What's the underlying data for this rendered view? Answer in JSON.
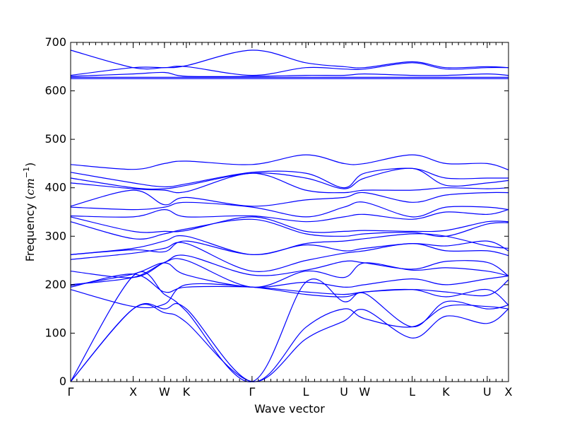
{
  "chart_data": {
    "type": "line",
    "title": "",
    "xlabel": "Wave vector",
    "ylabel": "Frequency (",
    "ylabel_unit": "cm",
    "ylabel_exponent": "−1",
    "ylabel_close": ")",
    "ylim": [
      0,
      700
    ],
    "xlim": [
      0,
      7.0
    ],
    "yticks": [
      0,
      100,
      200,
      300,
      400,
      500,
      600,
      700
    ],
    "ytick_labels": [
      "0",
      "100",
      "200",
      "300",
      "400",
      "500",
      "600",
      "700"
    ],
    "high_symmetry_points": [
      {
        "label": "Γ",
        "x": 0.0
      },
      {
        "label": "X",
        "x": 1.0
      },
      {
        "label": "W",
        "x": 1.5
      },
      {
        "label": "K",
        "x": 1.85
      },
      {
        "label": "Γ",
        "x": 2.9
      },
      {
        "label": "L",
        "x": 3.76
      },
      {
        "label": "U",
        "x": 4.37
      },
      {
        "label": "W",
        "x": 4.7
      },
      {
        "label": "L",
        "x": 5.46
      },
      {
        "label": "K",
        "x": 6.0
      },
      {
        "label": "U",
        "x": 6.66
      },
      {
        "label": "X",
        "x": 7.0
      }
    ],
    "line_color": "#0000ff",
    "grid": false,
    "legend": "none",
    "series": [
      {
        "x": [
          0,
          1.0,
          1.5,
          1.85,
          2.9,
          3.76,
          4.37,
          4.7,
          5.46,
          6.0,
          6.66,
          7.0
        ],
        "values": [
          0,
          150,
          142,
          122,
          0,
          88,
          125,
          148,
          90,
          135,
          120,
          150
        ]
      },
      {
        "x": [
          0,
          1.0,
          1.5,
          1.85,
          2.9,
          3.76,
          4.37,
          4.7,
          5.46,
          6.0,
          6.66,
          7.0
        ],
        "values": [
          0,
          150,
          150,
          150,
          0,
          112,
          150,
          130,
          113,
          155,
          155,
          150
        ]
      },
      {
        "x": [
          0,
          1.0,
          1.5,
          1.85,
          2.9,
          3.76,
          4.37,
          4.7,
          5.46,
          6.0,
          6.66,
          7.0
        ],
        "values": [
          0,
          218,
          180,
          145,
          0,
          205,
          165,
          182,
          113,
          165,
          150,
          158
        ]
      },
      {
        "x": [
          0,
          1.0,
          1.5,
          1.85,
          2.9,
          3.76,
          4.37,
          4.7,
          5.46,
          6.0,
          6.66,
          7.0
        ],
        "values": [
          190,
          155,
          160,
          200,
          195,
          180,
          175,
          185,
          190,
          175,
          190,
          158
        ]
      },
      {
        "x": [
          0,
          1.0,
          1.5,
          1.85,
          2.9,
          3.76,
          4.37,
          4.7,
          5.46,
          6.0,
          6.66,
          7.0
        ],
        "values": [
          195,
          222,
          185,
          195,
          195,
          185,
          180,
          185,
          190,
          185,
          178,
          210
        ]
      },
      {
        "x": [
          0,
          1.0,
          1.5,
          1.85,
          2.9,
          3.76,
          4.37,
          4.7,
          5.46,
          6.0,
          6.66,
          7.0
        ],
        "values": [
          198,
          222,
          245,
          220,
          195,
          205,
          195,
          200,
          212,
          200,
          212,
          218
        ]
      },
      {
        "x": [
          0,
          1.0,
          1.5,
          1.85,
          2.9,
          3.76,
          4.37,
          4.7,
          5.46,
          6.0,
          6.66,
          7.0
        ],
        "values": [
          200,
          215,
          246,
          250,
          195,
          228,
          215,
          245,
          230,
          235,
          228,
          218
        ]
      },
      {
        "x": [
          0,
          1.0,
          1.5,
          1.85,
          2.9,
          3.76,
          4.37,
          4.7,
          5.46,
          6.0,
          6.66,
          7.0
        ],
        "values": [
          228,
          215,
          246,
          260,
          220,
          230,
          248,
          245,
          232,
          248,
          246,
          218
        ]
      },
      {
        "x": [
          0,
          1.0,
          1.5,
          1.85,
          2.9,
          3.76,
          4.37,
          4.7,
          5.46,
          6.0,
          6.66,
          7.0
        ],
        "values": [
          252,
          265,
          275,
          285,
          228,
          250,
          265,
          270,
          285,
          270,
          270,
          260
        ]
      },
      {
        "x": [
          0,
          1.0,
          1.5,
          1.85,
          2.9,
          3.76,
          4.37,
          4.7,
          5.46,
          6.0,
          6.66,
          7.0
        ],
        "values": [
          262,
          272,
          268,
          290,
          262,
          282,
          270,
          275,
          285,
          280,
          290,
          270
        ]
      },
      {
        "x": [
          0,
          1.0,
          1.5,
          1.85,
          2.9,
          3.76,
          4.37,
          4.7,
          5.46,
          6.0,
          6.66,
          7.0
        ],
        "values": [
          262,
          275,
          290,
          300,
          262,
          285,
          290,
          295,
          305,
          300,
          280,
          275
        ]
      },
      {
        "x": [
          0,
          1.0,
          1.5,
          1.85,
          2.9,
          3.76,
          4.37,
          4.7,
          5.46,
          6.0,
          6.66,
          7.0
        ],
        "values": [
          330,
          295,
          305,
          315,
          335,
          305,
          300,
          305,
          308,
          300,
          325,
          328
        ]
      },
      {
        "x": [
          0,
          1.0,
          1.5,
          1.85,
          2.9,
          3.76,
          4.37,
          4.7,
          5.46,
          6.0,
          6.66,
          7.0
        ],
        "values": [
          340,
          310,
          310,
          312,
          340,
          310,
          310,
          312,
          310,
          312,
          330,
          330
        ]
      },
      {
        "x": [
          0,
          1.0,
          1.5,
          1.85,
          2.9,
          3.76,
          4.37,
          4.7,
          5.46,
          6.0,
          6.66,
          7.0
        ],
        "values": [
          342,
          340,
          355,
          340,
          342,
          330,
          340,
          345,
          335,
          350,
          345,
          355
        ]
      },
      {
        "x": [
          0,
          1.0,
          1.5,
          1.85,
          2.9,
          3.76,
          4.37,
          4.7,
          5.46,
          6.0,
          6.66,
          7.0
        ],
        "values": [
          360,
          355,
          360,
          370,
          360,
          340,
          360,
          370,
          340,
          360,
          360,
          355
        ]
      },
      {
        "x": [
          0,
          1.0,
          1.5,
          1.85,
          2.9,
          3.76,
          4.37,
          4.7,
          5.46,
          6.0,
          6.66,
          7.0
        ],
        "values": [
          362,
          395,
          365,
          380,
          362,
          375,
          380,
          390,
          370,
          385,
          390,
          390
        ]
      },
      {
        "x": [
          0,
          1.0,
          1.5,
          1.85,
          2.9,
          3.76,
          4.37,
          4.7,
          5.46,
          6.0,
          6.66,
          7.0
        ],
        "values": [
          410,
          398,
          395,
          392,
          430,
          395,
          390,
          395,
          395,
          400,
          398,
          400
        ]
      },
      {
        "x": [
          0,
          1.0,
          1.5,
          1.85,
          2.9,
          3.76,
          4.37,
          4.7,
          5.46,
          6.0,
          6.66,
          7.0
        ],
        "values": [
          420,
          400,
          398,
          405,
          430,
          420,
          398,
          420,
          440,
          405,
          410,
          415
        ]
      },
      {
        "x": [
          0,
          1.0,
          1.5,
          1.85,
          2.9,
          3.76,
          4.37,
          4.7,
          5.46,
          6.0,
          6.66,
          7.0
        ],
        "values": [
          432,
          410,
          402,
          408,
          432,
          430,
          400,
          430,
          440,
          420,
          420,
          420
        ]
      },
      {
        "x": [
          0,
          1.0,
          1.5,
          1.85,
          2.9,
          3.76,
          4.37,
          4.7,
          5.46,
          6.0,
          6.66,
          7.0
        ],
        "values": [
          448,
          438,
          450,
          455,
          448,
          468,
          450,
          450,
          468,
          450,
          450,
          437
        ]
      },
      {
        "x": [
          0,
          1.0,
          1.5,
          1.85,
          2.9,
          3.76,
          4.37,
          4.7,
          5.46,
          6.0,
          6.66,
          7.0
        ],
        "values": [
          625,
          625,
          625,
          625,
          625,
          625,
          625,
          625,
          625,
          625,
          625,
          625
        ]
      },
      {
        "x": [
          0,
          1.0,
          1.5,
          1.85,
          2.9,
          3.76,
          4.37,
          4.7,
          5.46,
          6.0,
          6.66,
          7.0
        ],
        "values": [
          628,
          628,
          628,
          628,
          628,
          628,
          628,
          628,
          628,
          628,
          628,
          628
        ]
      },
      {
        "x": [
          0,
          1.0,
          1.5,
          1.85,
          2.9,
          3.76,
          4.37,
          4.7,
          5.46,
          6.0,
          6.66,
          7.0
        ],
        "values": [
          630,
          635,
          638,
          630,
          630,
          632,
          632,
          635,
          632,
          632,
          635,
          632
        ]
      },
      {
        "x": [
          0,
          1.0,
          1.5,
          1.85,
          2.9,
          3.76,
          4.37,
          4.7,
          5.46,
          6.0,
          6.66,
          7.0
        ],
        "values": [
          632,
          648,
          648,
          650,
          632,
          648,
          645,
          645,
          658,
          645,
          648,
          648
        ]
      },
      {
        "x": [
          0,
          1.0,
          1.5,
          1.85,
          2.9,
          3.76,
          4.37,
          4.7,
          5.46,
          6.0,
          6.66,
          7.0
        ],
        "values": [
          684,
          648,
          648,
          652,
          684,
          658,
          650,
          648,
          660,
          648,
          650,
          648
        ]
      }
    ]
  }
}
